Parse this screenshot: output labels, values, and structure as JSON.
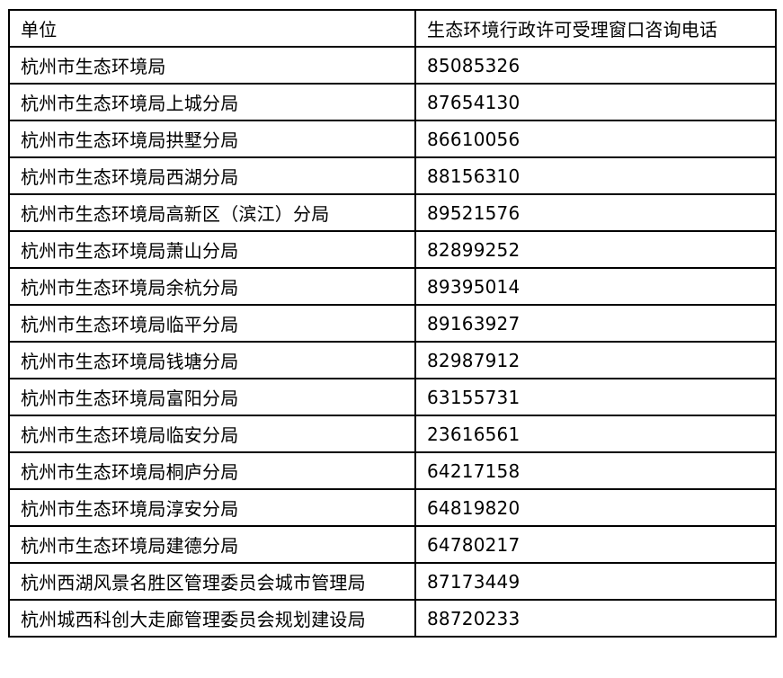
{
  "colors": {
    "background": "#ffffff",
    "border": "#000000",
    "text": "#000000"
  },
  "table": {
    "headers": [
      "单位",
      "生态环境行政许可受理窗口咨询电话"
    ],
    "rows": [
      {
        "unit": "杭州市生态环境局",
        "phone": "85085326"
      },
      {
        "unit": "杭州市生态环境局上城分局",
        "phone": "87654130"
      },
      {
        "unit": "杭州市生态环境局拱墅分局",
        "phone": "86610056"
      },
      {
        "unit": "杭州市生态环境局西湖分局",
        "phone": "88156310"
      },
      {
        "unit": "杭州市生态环境局高新区（滨江）分局",
        "phone": "89521576"
      },
      {
        "unit": "杭州市生态环境局萧山分局",
        "phone": "82899252"
      },
      {
        "unit": "杭州市生态环境局余杭分局",
        "phone": "89395014"
      },
      {
        "unit": "杭州市生态环境局临平分局",
        "phone": "89163927"
      },
      {
        "unit": "杭州市生态环境局钱塘分局",
        "phone": "82987912"
      },
      {
        "unit": "杭州市生态环境局富阳分局",
        "phone": "63155731"
      },
      {
        "unit": "杭州市生态环境局临安分局",
        "phone": "23616561"
      },
      {
        "unit": "杭州市生态环境局桐庐分局",
        "phone": "64217158"
      },
      {
        "unit": "杭州市生态环境局淳安分局",
        "phone": "64819820"
      },
      {
        "unit": "杭州市生态环境局建德分局",
        "phone": "64780217"
      },
      {
        "unit": "杭州西湖风景名胜区管理委员会城市管理局",
        "phone": "87173449"
      },
      {
        "unit": "杭州城西科创大走廊管理委员会规划建设局",
        "phone": "88720233"
      }
    ]
  }
}
